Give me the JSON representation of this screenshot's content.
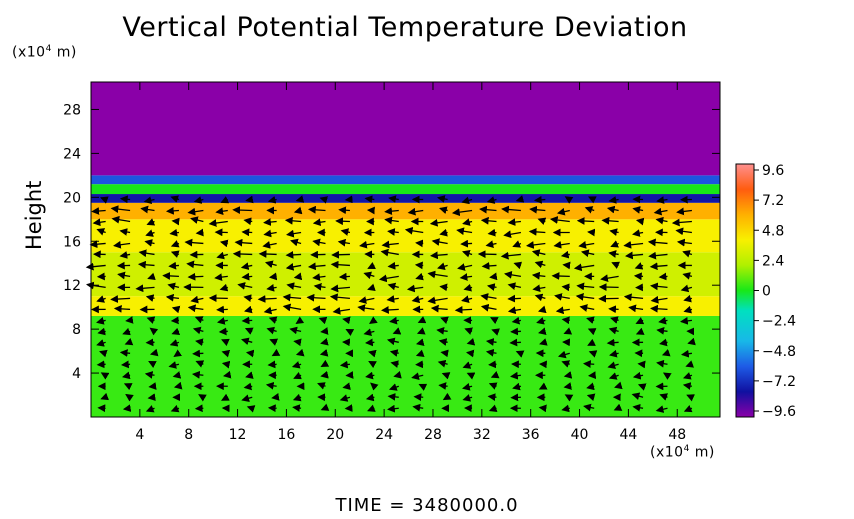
{
  "chart_data": {
    "type": "heatmap",
    "title": "Vertical Potential Temperature Deviation",
    "ylabel": "Height",
    "x_unit": "(×10⁴ m)",
    "y_unit": "(×10⁴ m)",
    "x_ticks": [
      4,
      8,
      12,
      16,
      20,
      24,
      28,
      32,
      36,
      40,
      44,
      48
    ],
    "y_ticks": [
      4,
      8,
      12,
      16,
      20,
      24,
      28
    ],
    "xlim": [
      0,
      51.5
    ],
    "ylim": [
      0,
      30.5
    ],
    "colorbar": {
      "ticks": [
        "9.6",
        "7.2",
        "4.8",
        "2.4",
        "0",
        "-2.4",
        "-4.8",
        "-7.2",
        "-9.6"
      ],
      "range": [
        -9.6,
        9.6
      ]
    },
    "field_layers": [
      {
        "y_from": 0,
        "y_to": 9.2,
        "value": 0.5
      },
      {
        "y_from": 9.2,
        "y_to": 11,
        "value": 3.8
      },
      {
        "y_from": 11,
        "y_to": 15,
        "value": 3.0
      },
      {
        "y_from": 15,
        "y_to": 18,
        "value": 3.8
      },
      {
        "y_from": 18,
        "y_to": 19.5,
        "value": 4.8
      },
      {
        "y_from": 19.5,
        "y_to": 20.3,
        "value": -7.0
      },
      {
        "y_from": 20.3,
        "y_to": 21.2,
        "value": 0.0
      },
      {
        "y_from": 21.2,
        "y_to": 22.0,
        "value": -5.0
      },
      {
        "y_from": 22.0,
        "y_to": 30.5,
        "value": -9.6
      }
    ],
    "vectors": "wind vector field overlay"
  },
  "footer": {
    "time_label": "TIME  =  3480000.0"
  },
  "colors": {
    "purple": "#9400a6",
    "green": "#2ee82e",
    "yellow": "#f3f000",
    "orange": "#ffb000",
    "blue": "#2020c8"
  }
}
